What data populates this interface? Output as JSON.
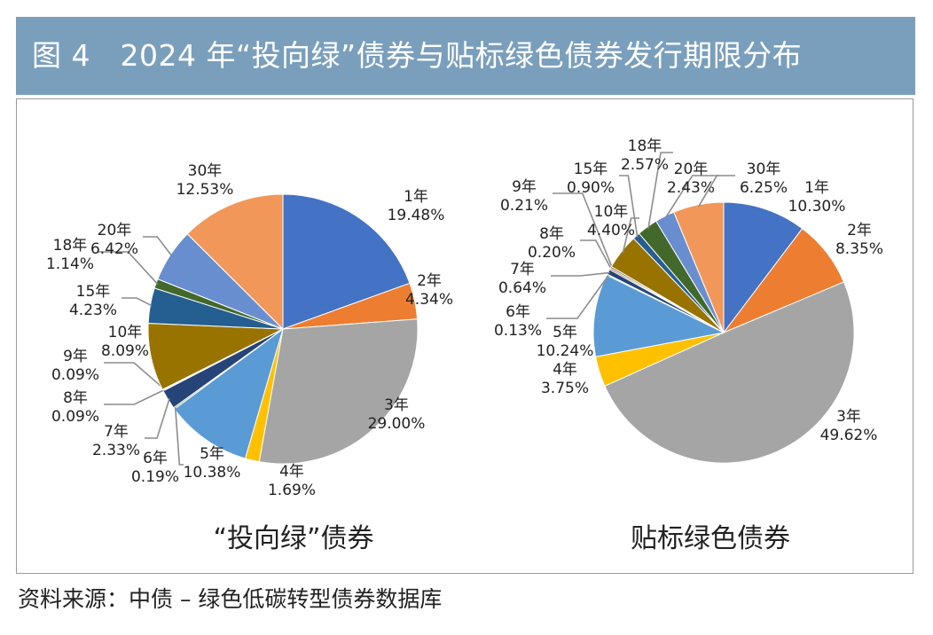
{
  "header": {
    "title": "图 4　2024 年“投向绿”债券与贴标绿色债券发行期限分布"
  },
  "source": "资料来源：中债 – 绿色低碳转型债券数据库",
  "colors": {
    "title_bar": "#7a9fbd",
    "leader_line": "#8c8c8c"
  },
  "chart_data": [
    {
      "type": "pie",
      "title": "“投向绿”债券",
      "start": "12 o'clock",
      "direction": "clockwise",
      "slices": [
        {
          "label": "1年",
          "value": 19.48,
          "value_text": "19.48%",
          "color": "#4472c4"
        },
        {
          "label": "2年",
          "value": 4.34,
          "value_text": "4.34%",
          "color": "#ed7d31"
        },
        {
          "label": "3年",
          "value": 29.0,
          "value_text": "29.00%",
          "color": "#a5a5a5"
        },
        {
          "label": "4年",
          "value": 1.69,
          "value_text": "1.69%",
          "color": "#ffc000"
        },
        {
          "label": "5年",
          "value": 10.38,
          "value_text": "10.38%",
          "color": "#5b9bd5"
        },
        {
          "label": "6年",
          "value": 0.19,
          "value_text": "0.19%",
          "color": "#70ad47"
        },
        {
          "label": "7年",
          "value": 2.33,
          "value_text": "2.33%",
          "color": "#264478"
        },
        {
          "label": "8年",
          "value": 0.09,
          "value_text": "0.09%",
          "color": "#9e480e"
        },
        {
          "label": "9年",
          "value": 0.09,
          "value_text": "0.09%",
          "color": "#636363"
        },
        {
          "label": "10年",
          "value": 8.09,
          "value_text": "8.09%",
          "color": "#997300"
        },
        {
          "label": "15年",
          "value": 4.23,
          "value_text": "4.23%",
          "color": "#255e91"
        },
        {
          "label": "18年",
          "value": 1.14,
          "value_text": "1.14%",
          "color": "#43682b"
        },
        {
          "label": "20年",
          "value": 6.42,
          "value_text": "6.42%",
          "color": "#698ed0"
        },
        {
          "label": "30年",
          "value": 12.53,
          "value_text": "12.53%",
          "color": "#f1975a"
        }
      ]
    },
    {
      "type": "pie",
      "title": "贴标绿色债券",
      "start": "12 o'clock",
      "direction": "clockwise",
      "slices": [
        {
          "label": "1年",
          "value": 10.3,
          "value_text": "10.30%",
          "color": "#4472c4"
        },
        {
          "label": "2年",
          "value": 8.35,
          "value_text": "8.35%",
          "color": "#ed7d31"
        },
        {
          "label": "3年",
          "value": 49.62,
          "value_text": "49.62%",
          "color": "#a5a5a5"
        },
        {
          "label": "4年",
          "value": 3.75,
          "value_text": "3.75%",
          "color": "#ffc000"
        },
        {
          "label": "5年",
          "value": 10.24,
          "value_text": "10.24%",
          "color": "#5b9bd5"
        },
        {
          "label": "6年",
          "value": 0.13,
          "value_text": "0.13%",
          "color": "#70ad47"
        },
        {
          "label": "7年",
          "value": 0.64,
          "value_text": "0.64%",
          "color": "#264478"
        },
        {
          "label": "8年",
          "value": 0.2,
          "value_text": "0.20%",
          "color": "#9e480e"
        },
        {
          "label": "9年",
          "value": 0.21,
          "value_text": "0.21%",
          "color": "#636363"
        },
        {
          "label": "10年",
          "value": 4.4,
          "value_text": "4.40%",
          "color": "#997300"
        },
        {
          "label": "15年",
          "value": 0.9,
          "value_text": "0.90%",
          "color": "#255e91"
        },
        {
          "label": "18年",
          "value": 2.57,
          "value_text": "2.57%",
          "color": "#43682b"
        },
        {
          "label": "20年",
          "value": 2.43,
          "value_text": "2.43%",
          "color": "#698ed0"
        },
        {
          "label": "30年",
          "value": 6.25,
          "value_text": "6.25%",
          "color": "#f1975a"
        }
      ]
    }
  ]
}
